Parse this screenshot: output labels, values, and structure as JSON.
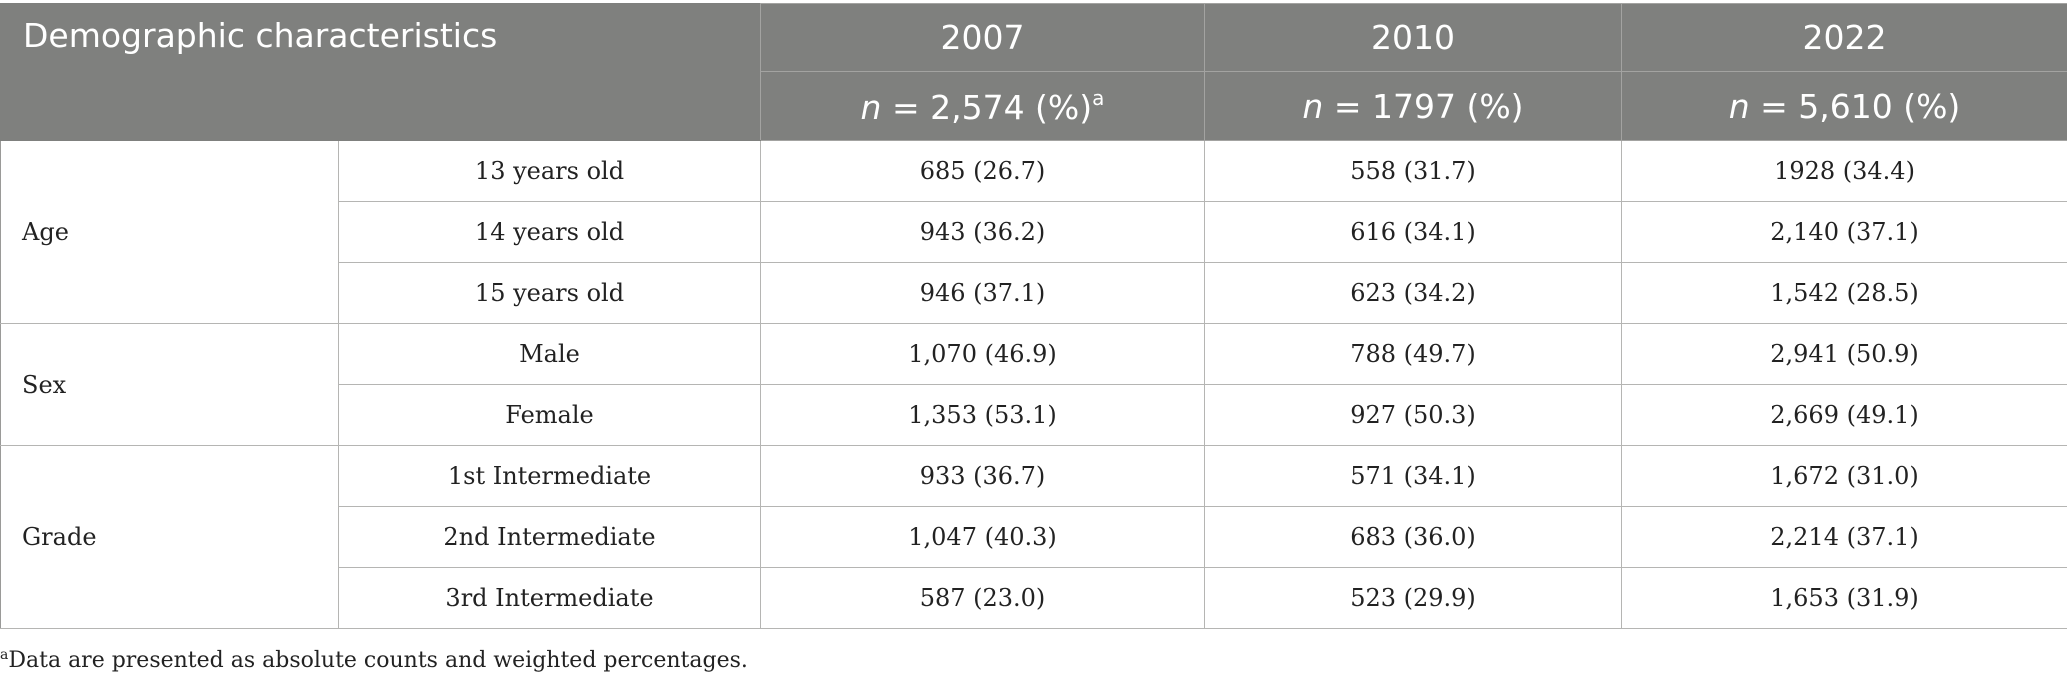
{
  "header": {
    "title": "Demographic characteristics",
    "years": [
      "2007",
      "2010",
      "2022"
    ],
    "n_prefix": "n",
    "n_values": [
      " = 2,574 (%)",
      " = 1797 (%)",
      " = 5,610 (%)"
    ],
    "n_footnote_mark": "a"
  },
  "groups": [
    {
      "label": "Age",
      "rows": [
        {
          "label": "13 years old",
          "values": [
            "685 (26.7)",
            "558 (31.7)",
            "1928 (34.4)"
          ]
        },
        {
          "label": "14 years old",
          "values": [
            "943 (36.2)",
            "616 (34.1)",
            "2,140 (37.1)"
          ]
        },
        {
          "label": "15 years old",
          "values": [
            "946 (37.1)",
            "623 (34.2)",
            "1,542 (28.5)"
          ]
        }
      ]
    },
    {
      "label": "Sex",
      "rows": [
        {
          "label": "Male",
          "values": [
            "1,070 (46.9)",
            "788 (49.7)",
            "2,941 (50.9)"
          ]
        },
        {
          "label": "Female",
          "values": [
            "1,353 (53.1)",
            "927 (50.3)",
            "2,669 (49.1)"
          ]
        }
      ]
    },
    {
      "label": "Grade",
      "rows": [
        {
          "label": "1st Intermediate",
          "values": [
            "933 (36.7)",
            "571 (34.1)",
            "1,672 (31.0)"
          ]
        },
        {
          "label": "2nd Intermediate",
          "values": [
            "1,047 (40.3)",
            "683 (36.0)",
            "2,214 (37.1)"
          ]
        },
        {
          "label": "3rd Intermediate",
          "values": [
            "587 (23.0)",
            "523 (29.9)",
            "1,653 (31.9)"
          ]
        }
      ]
    }
  ],
  "footnote": {
    "mark": "a",
    "text": "Data are presented as absolute counts and weighted percentages."
  },
  "colors": {
    "header_bg": "#7f807e",
    "header_text": "#ffffff",
    "grid": "#b5b5b3"
  }
}
